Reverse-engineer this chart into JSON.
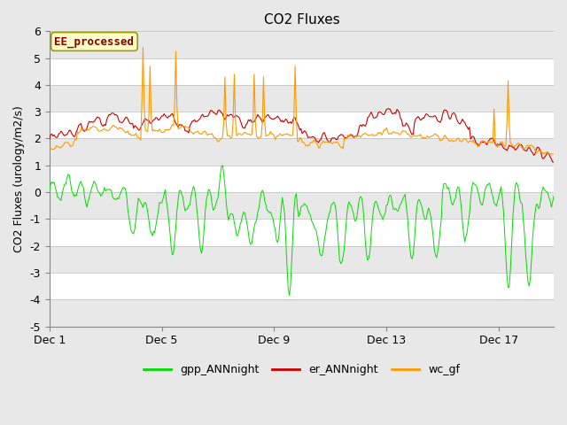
{
  "title": "CO2 Fluxes",
  "ylabel": "CO2 Fluxes (urology/m2/s)",
  "ylim": [
    -5.0,
    6.0
  ],
  "yticks": [
    -5.0,
    -4.0,
    -3.0,
    -2.0,
    -1.0,
    0.0,
    1.0,
    2.0,
    3.0,
    4.0,
    5.0,
    6.0
  ],
  "xtick_labels": [
    "Dec 1",
    "Dec 5",
    "Dec 9",
    "Dec 13",
    "Dec 17"
  ],
  "xtick_positions": [
    0,
    96,
    192,
    288,
    384
  ],
  "n_points": 432,
  "gpp_color": "#00dd00",
  "er_color": "#cc0000",
  "wc_color": "#ff9900",
  "annotation_text": "EE_processed",
  "annotation_color": "#880000",
  "annotation_bg": "#ffffcc",
  "annotation_edge": "#999900",
  "legend_labels": [
    "gpp_ANNnight",
    "er_ANNnight",
    "wc_gf"
  ],
  "legend_colors": [
    "#00dd00",
    "#cc0000",
    "#ff9900"
  ],
  "bg_color": "#e8e8e8",
  "white_band_ranges": [
    [
      -4.0,
      -3.0
    ],
    [
      -2.0,
      -1.0
    ],
    [
      0.0,
      1.0
    ],
    [
      2.0,
      3.0
    ],
    [
      4.0,
      5.0
    ]
  ],
  "title_fontsize": 11,
  "axis_fontsize": 9,
  "tick_fontsize": 9,
  "figsize": [
    6.4,
    4.8
  ],
  "dpi": 100
}
